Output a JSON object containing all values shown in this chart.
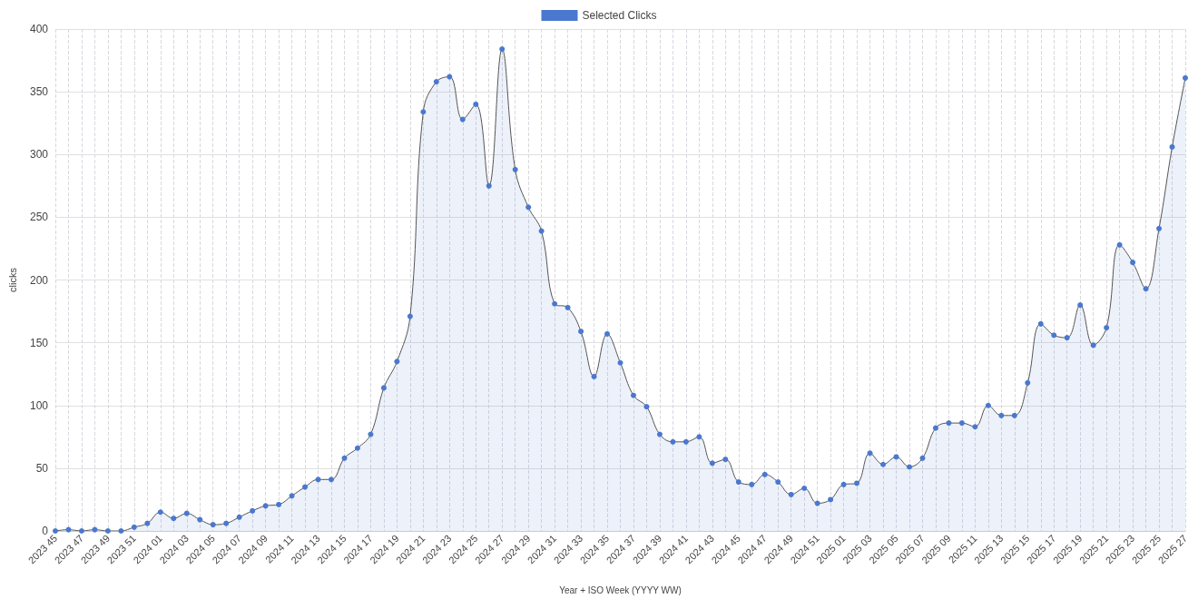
{
  "chart_data": {
    "type": "area",
    "xlabel": "Year + ISO Week (YYYY WW)",
    "ylabel": "clicks",
    "categories": [
      "2023 45",
      null,
      "2023 47",
      null,
      "2023 49",
      null,
      "2023 51",
      null,
      "2024 01",
      null,
      "2024 03",
      null,
      "2024 05",
      null,
      "2024 07",
      null,
      "2024 09",
      null,
      "2024 11",
      null,
      "2024 13",
      null,
      "2024 15",
      null,
      "2024 17",
      null,
      "2024 19",
      null,
      "2024 21",
      null,
      "2024 23",
      null,
      "2024 25",
      null,
      "2024 27",
      null,
      "2024 29",
      null,
      "2024 31",
      null,
      "2024 33",
      null,
      "2024 35",
      null,
      "2024 37",
      null,
      "2024 39",
      null,
      "2024 41",
      null,
      "2024 43",
      null,
      "2024 45",
      null,
      "2024 47",
      null,
      "2024 49",
      null,
      "2024 51",
      null,
      "2025 01",
      null,
      "2025 03",
      null,
      "2025 05",
      null,
      "2025 07",
      null,
      "2025 09",
      null,
      "2025 11",
      null,
      "2025 13",
      null,
      "2025 15",
      null,
      "2025 17",
      null,
      "2025 19",
      null,
      "2025 21",
      null,
      "2025 23",
      null,
      "2025 25",
      null,
      "2025 27"
    ],
    "series": [
      {
        "name": "Selected Clicks",
        "color": "#4a78cf",
        "values": [
          0,
          1,
          0,
          1,
          0,
          0,
          3,
          6,
          15,
          10,
          14,
          9,
          5,
          6,
          11,
          16,
          20,
          21,
          28,
          35,
          41,
          41,
          58,
          66,
          77,
          114,
          135,
          171,
          334,
          358,
          362,
          328,
          340,
          275,
          384,
          288,
          258,
          239,
          181,
          178,
          159,
          123,
          157,
          134,
          108,
          99,
          77,
          71,
          71,
          75,
          54,
          57,
          39,
          37,
          45,
          39,
          29,
          34,
          22,
          25,
          37,
          38,
          62,
          53,
          59,
          51,
          58,
          82,
          86,
          86,
          83,
          100,
          92,
          92,
          118,
          165,
          156,
          154,
          180,
          148,
          162,
          228,
          214,
          193,
          241,
          306,
          361
        ]
      }
    ],
    "ylim": [
      0,
      400
    ],
    "yticks": [
      0,
      50,
      100,
      150,
      200,
      250,
      300,
      350,
      400
    ],
    "grid": true,
    "legend": "top",
    "marker": "circle",
    "line_style": "solid"
  }
}
